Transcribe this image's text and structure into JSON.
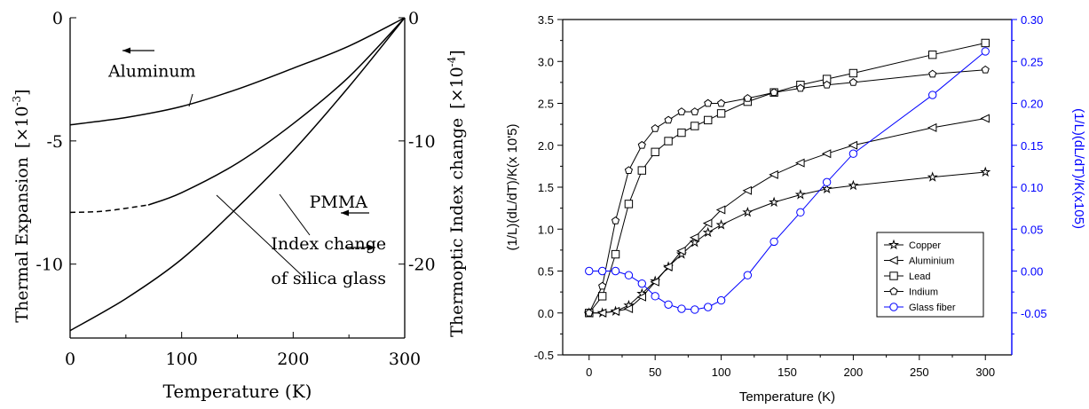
{
  "chart_data": [
    {
      "type": "line",
      "title": "",
      "xlabel": "Temperature (K)",
      "ylabel": "Thermal Expansion",
      "ylabel_unit": "[×10",
      "ylabel_exp": "-3",
      "ylabel_close": "]",
      "y2label": "Thermoptic Index change",
      "y2label_unit": "[×10",
      "y2label_exp": "-4",
      "y2label_close": "]",
      "xlim": [
        0,
        300
      ],
      "ylim": [
        -13,
        0
      ],
      "y2lim": [
        -26,
        0
      ],
      "xticks": [
        0,
        100,
        200,
        300
      ],
      "xtick_labels": [
        "0",
        "100",
        "200",
        "300"
      ],
      "yticks": [
        0,
        -5,
        -10
      ],
      "ytick_labels": [
        "0",
        "-5",
        "-10"
      ],
      "y2ticks": [
        0,
        -10,
        -20
      ],
      "y2tick_labels": [
        "0",
        "-10",
        "-20"
      ],
      "grid": false,
      "series": [
        {
          "name": "Aluminum",
          "axis": "left",
          "style": "solid",
          "x": [
            0,
            50,
            100,
            150,
            200,
            250,
            300
          ],
          "y": [
            -4.35,
            -4.05,
            -3.6,
            -2.9,
            -2.05,
            -1.15,
            0
          ]
        },
        {
          "name": "Index change of silica glass",
          "axis": "right",
          "style": "solid",
          "x": [
            70,
            100,
            150,
            200,
            250,
            300
          ],
          "y": [
            -15.2,
            -14.2,
            -11.8,
            -8.6,
            -4.8,
            0
          ]
        },
        {
          "name": "Index change of silica glass",
          "axis": "right",
          "style": "dashed",
          "x": [
            0,
            30,
            70
          ],
          "y": [
            -15.8,
            -15.7,
            -15.2
          ]
        },
        {
          "name": "PMMA",
          "axis": "right",
          "style": "solid",
          "x": [
            0,
            50,
            100,
            150,
            200,
            250,
            300
          ],
          "y": [
            -25.4,
            -22.8,
            -19.6,
            -15.4,
            -10.8,
            -5.6,
            0
          ]
        }
      ],
      "annotations": [
        {
          "text": "Aluminum",
          "x": 70,
          "y": -2.4,
          "arrow": "left"
        },
        {
          "text": "PMMA",
          "x": 240,
          "y": -7.7,
          "arrow": "left"
        },
        {
          "text": "Index change",
          "x": 212,
          "y": -9.4,
          "arrow": "right"
        },
        {
          "text": "of silica glass",
          "x": 212,
          "y": -10.8
        }
      ]
    },
    {
      "type": "line",
      "title": "",
      "xlabel": "Temperature (K)",
      "ylabel": "(1/L)(dL/dT)/K(x 10'5)",
      "y2label": "(1/L)(dL/dT)/K(x105)",
      "xlim": [
        -20,
        320
      ],
      "ylim": [
        -0.5,
        3.5
      ],
      "y2lim": [
        -0.1,
        0.3
      ],
      "xticks": [
        0,
        50,
        100,
        150,
        200,
        250,
        300
      ],
      "xtick_labels": [
        "0",
        "50",
        "100",
        "150",
        "200",
        "250",
        "300"
      ],
      "yticks": [
        -0.5,
        0.0,
        0.5,
        1.0,
        1.5,
        2.0,
        2.5,
        3.0,
        3.5
      ],
      "ytick_labels": [
        "-0.5",
        "0.0",
        "0.5",
        "1.0",
        "1.5",
        "2.0",
        "2.5",
        "3.0",
        "3.5"
      ],
      "y2ticks": [
        -0.05,
        0.0,
        0.05,
        0.1,
        0.15,
        0.2,
        0.25,
        0.3
      ],
      "y2tick_labels": [
        "-0.05",
        "0.00",
        "0.05",
        "0.10",
        "0.15",
        "0.20",
        "0.25",
        "0.30"
      ],
      "grid": false,
      "legend_position": "bottom-right",
      "right_axis_color": "#0000ff",
      "series": [
        {
          "name": "Copper",
          "marker": "star",
          "axis": "left",
          "color": "#000000",
          "x": [
            0,
            10,
            20,
            30,
            40,
            50,
            60,
            70,
            80,
            90,
            100,
            120,
            140,
            160,
            180,
            200,
            260,
            300
          ],
          "y": [
            0,
            0,
            0.02,
            0.09,
            0.23,
            0.38,
            0.55,
            0.7,
            0.84,
            0.96,
            1.05,
            1.2,
            1.32,
            1.41,
            1.48,
            1.52,
            1.62,
            1.68
          ]
        },
        {
          "name": "Aluminium",
          "marker": "triangle-left",
          "axis": "left",
          "color": "#000000",
          "x": [
            0,
            10,
            20,
            30,
            40,
            50,
            60,
            70,
            80,
            90,
            100,
            120,
            140,
            160,
            180,
            200,
            260,
            300
          ],
          "y": [
            0,
            0,
            0.02,
            0.05,
            0.19,
            0.37,
            0.55,
            0.74,
            0.9,
            1.07,
            1.23,
            1.46,
            1.65,
            1.79,
            1.9,
            2.0,
            2.21,
            2.32
          ]
        },
        {
          "name": "Lead",
          "marker": "square",
          "axis": "left",
          "color": "#000000",
          "x": [
            0,
            10,
            20,
            30,
            40,
            50,
            60,
            70,
            80,
            90,
            100,
            120,
            140,
            160,
            180,
            200,
            260,
            300
          ],
          "y": [
            0,
            0.2,
            0.7,
            1.3,
            1.7,
            1.92,
            2.05,
            2.15,
            2.23,
            2.3,
            2.38,
            2.52,
            2.63,
            2.72,
            2.79,
            2.86,
            3.08,
            3.22
          ]
        },
        {
          "name": "Indium",
          "marker": "pentagon",
          "axis": "left",
          "color": "#000000",
          "x": [
            0,
            10,
            20,
            30,
            40,
            50,
            60,
            70,
            80,
            90,
            100,
            120,
            140,
            160,
            180,
            200,
            260,
            300
          ],
          "y": [
            0,
            0.32,
            1.1,
            1.7,
            2.0,
            2.2,
            2.3,
            2.4,
            2.4,
            2.5,
            2.5,
            2.56,
            2.63,
            2.68,
            2.72,
            2.75,
            2.85,
            2.9
          ]
        },
        {
          "name": "Glass fiber",
          "marker": "circle",
          "axis": "right",
          "color": "#0000ff",
          "x": [
            0,
            10,
            20,
            30,
            40,
            50,
            60,
            70,
            80,
            90,
            100,
            120,
            140,
            160,
            180,
            200,
            260,
            300
          ],
          "y": [
            0.0,
            0.0,
            0.0,
            -0.005,
            -0.015,
            -0.03,
            -0.04,
            -0.045,
            -0.046,
            -0.043,
            -0.035,
            -0.005,
            0.035,
            0.07,
            0.106,
            0.14,
            0.21,
            0.262
          ]
        }
      ]
    }
  ]
}
